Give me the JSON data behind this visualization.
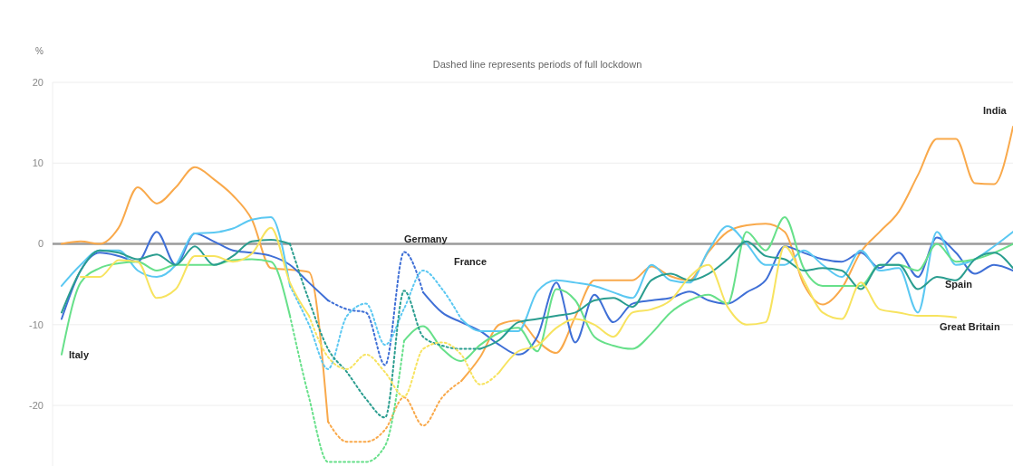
{
  "chart_data": {
    "type": "line",
    "subtitle": "Dashed line represents periods of full lockdown",
    "ylabel": "%",
    "categories": [
      null,
      null,
      null,
      null,
      null,
      null,
      null,
      null,
      null,
      null,
      null,
      null,
      null,
      null,
      null,
      null,
      null,
      null,
      null,
      null,
      null,
      null,
      null,
      null,
      null,
      null,
      null,
      null,
      null,
      null,
      null,
      null,
      null,
      null,
      null,
      null,
      null,
      null,
      null,
      null,
      null,
      null,
      null,
      null,
      null,
      null,
      null,
      null,
      null,
      null,
      null
    ],
    "ylim": [
      -27.5,
      20
    ],
    "yticks": [
      20,
      10,
      0,
      -10,
      -20
    ],
    "grid": "y",
    "legend": false,
    "ref_lines": [
      {
        "axis": "y",
        "value": 0,
        "color": "#9a9a9a"
      }
    ],
    "series": [
      {
        "color": "#f9a94b",
        "line_style": "solid",
        "values": [
          0,
          0.3,
          0,
          2,
          7,
          5,
          7,
          9.5,
          8,
          6,
          3,
          -3,
          -3.2,
          -3.5,
          -22,
          null,
          null,
          null,
          null,
          null,
          null,
          null,
          null,
          null,
          null,
          null,
          null,
          null,
          null,
          null,
          null,
          null,
          null,
          null,
          null,
          null,
          null,
          null,
          null,
          null,
          null,
          null,
          null,
          null,
          null,
          null,
          null,
          null,
          null,
          null,
          null
        ]
      },
      {
        "color": "#f9a94b",
        "line_style": "dotted",
        "values": [
          null,
          null,
          null,
          null,
          null,
          null,
          null,
          null,
          null,
          null,
          null,
          null,
          null,
          null,
          -22,
          -24.5,
          -24.5,
          -23,
          -19,
          -22.5,
          -19,
          -17,
          null,
          null,
          null,
          null,
          null,
          null,
          null,
          null,
          null,
          null,
          null,
          null,
          null,
          null,
          null,
          null,
          null,
          null,
          null,
          null,
          null,
          null,
          null,
          null,
          null,
          null,
          null,
          null,
          null
        ]
      },
      {
        "name": "India",
        "color": "#f9a94b",
        "line_style": "solid",
        "values": [
          null,
          null,
          null,
          null,
          null,
          null,
          null,
          null,
          null,
          null,
          null,
          null,
          null,
          null,
          null,
          null,
          null,
          null,
          null,
          null,
          null,
          -17,
          -14,
          -10,
          -9.5,
          -12,
          -13.5,
          -9,
          -4.5,
          -4.5,
          -4.5,
          -2.8,
          -4,
          -4.5,
          -1,
          1.5,
          2.3,
          2.5,
          1.5,
          -5,
          -7.5,
          -5.5,
          -1,
          1.5,
          4,
          8.5,
          13,
          13,
          7.5,
          7.4,
          14.5
        ]
      },
      {
        "color": "#3f6fd6",
        "line_style": "solid",
        "values": [
          -9.3,
          -3.3,
          -1.1,
          -1.5,
          -2.2,
          1.5,
          -2.6,
          1.3,
          0.3,
          -0.8,
          -1.1,
          -1.5,
          -2.6,
          -4.8,
          -7,
          null,
          null,
          null,
          null,
          null,
          null,
          null,
          null,
          null,
          null,
          null,
          null,
          null,
          null,
          null,
          null,
          null,
          null,
          null,
          null,
          null,
          null,
          null,
          null,
          null,
          null,
          null,
          null,
          null,
          null,
          null,
          null,
          null,
          null,
          null,
          null
        ]
      },
      {
        "name": "Germany",
        "color": "#3f6fd6",
        "line_style": "dotted",
        "values": [
          null,
          null,
          null,
          null,
          null,
          null,
          null,
          null,
          null,
          null,
          null,
          null,
          null,
          null,
          -7,
          -8.1,
          -8.5,
          -15,
          -1,
          -6,
          null,
          null,
          null,
          null,
          null,
          null,
          null,
          null,
          null,
          null,
          null,
          null,
          null,
          null,
          null,
          null,
          null,
          null,
          null,
          null,
          null,
          null,
          null,
          null,
          null,
          null,
          null,
          null,
          null,
          null,
          null
        ]
      },
      {
        "color": "#3f6fd6",
        "line_style": "solid",
        "values": [
          null,
          null,
          null,
          null,
          null,
          null,
          null,
          null,
          null,
          null,
          null,
          null,
          null,
          null,
          null,
          null,
          null,
          null,
          null,
          -6,
          -8.5,
          -9.7,
          -10.8,
          -12.5,
          -13.7,
          -11.5,
          -4.8,
          -12.2,
          -6.3,
          -9.7,
          -7.4,
          -7,
          -6.7,
          -5.9,
          -7,
          -7.4,
          -6,
          -4.5,
          -0.3,
          -1.1,
          -1.9,
          -2.2,
          -1.1,
          -3,
          -1.1,
          -4.1,
          0.8,
          -1.1,
          -3.7,
          -2.6,
          -3.3
        ]
      },
      {
        "color": "#5bc8f2",
        "line_style": "solid",
        "values": [
          -5.2,
          -2.6,
          -0.8,
          -0.8,
          -3.3,
          -4.1,
          -2.6,
          1.3,
          1.4,
          1.9,
          3,
          3.3,
          -5.2,
          null,
          null,
          null,
          null,
          null,
          null,
          null,
          null,
          null,
          null,
          null,
          null,
          null,
          null,
          null,
          null,
          null,
          null,
          null,
          null,
          null,
          null,
          null,
          null,
          null,
          null,
          null,
          null,
          null,
          null,
          null,
          null,
          null,
          null,
          null,
          null,
          null,
          null
        ]
      },
      {
        "name": "France",
        "color": "#5bc8f2",
        "line_style": "dotted",
        "values": [
          null,
          null,
          null,
          null,
          null,
          null,
          null,
          null,
          null,
          null,
          null,
          null,
          -5.2,
          -10,
          -15.5,
          -8.9,
          -7.4,
          -12.5,
          -8,
          -3.3,
          -5.6,
          -9.3,
          null,
          null,
          null,
          null,
          null,
          null,
          null,
          null,
          null,
          null,
          null,
          null,
          null,
          null,
          null,
          null,
          null,
          null,
          null,
          null,
          null,
          null,
          null,
          null,
          null,
          null,
          null,
          null,
          null
        ]
      },
      {
        "color": "#5bc8f2",
        "line_style": "solid",
        "values": [
          null,
          null,
          null,
          null,
          null,
          null,
          null,
          null,
          null,
          null,
          null,
          null,
          null,
          null,
          null,
          null,
          null,
          null,
          null,
          null,
          null,
          -9.3,
          -10.8,
          -10.8,
          -10.8,
          -5.9,
          -4.5,
          -4.8,
          -5.2,
          -6,
          -6.7,
          -2.6,
          -4.5,
          -4.8,
          -0.8,
          2.2,
          0,
          -2.6,
          -2.6,
          -0.8,
          -2.6,
          -4.1,
          -0.8,
          -3.3,
          -3,
          -8.5,
          1.5,
          -2.6,
          -1.9,
          -0.3,
          1.5
        ]
      },
      {
        "name": "Italy",
        "color": "#67e08a",
        "line_style": "solid",
        "values": [
          -13.7,
          -4.8,
          -3,
          -2.4,
          -2.2,
          -3.3,
          -2.6,
          -2.6,
          -2.6,
          -2,
          -1.9,
          -2.2,
          -8.9,
          null,
          null,
          null,
          null,
          null,
          null,
          null,
          null,
          null,
          null,
          null,
          null,
          null,
          null,
          null,
          null,
          null,
          null,
          null,
          null,
          null,
          null,
          null,
          null,
          null,
          null,
          null,
          null,
          null,
          null,
          null,
          null,
          null,
          null,
          null,
          null,
          null,
          null
        ]
      },
      {
        "color": "#67e08a",
        "line_style": "dotted",
        "values": [
          null,
          null,
          null,
          null,
          null,
          null,
          null,
          null,
          null,
          null,
          null,
          null,
          -8.9,
          -19,
          -27,
          -27,
          -27,
          -25,
          -12,
          null,
          null,
          null,
          null,
          null,
          null,
          null,
          null,
          null,
          null,
          null,
          null,
          null,
          null,
          null,
          null,
          null,
          null,
          null,
          null,
          null,
          null,
          null,
          null,
          null,
          null,
          null,
          null,
          null,
          null,
          null,
          null
        ]
      },
      {
        "color": "#67e08a",
        "line_style": "solid",
        "values": [
          null,
          null,
          null,
          null,
          null,
          null,
          null,
          null,
          null,
          null,
          null,
          null,
          null,
          null,
          null,
          null,
          null,
          null,
          -12,
          -10.2,
          -13,
          -14.5,
          -12.5,
          -11,
          -10.4,
          -13.3,
          -5.6,
          -7,
          -11.5,
          -12.6,
          -13,
          -11.1,
          -8.5,
          -7,
          -6.3,
          -7.4,
          1.5,
          -0.8,
          3.3,
          -3,
          -5.2,
          -5.2,
          -5.2,
          -2.6,
          -2.6,
          -3.3,
          0,
          -2.2,
          -1.9,
          -1.1,
          0
        ]
      },
      {
        "color": "#2a9d8f",
        "line_style": "solid",
        "values": [
          -8.5,
          -3.3,
          -0.8,
          -1.1,
          -1.9,
          -1.3,
          -2.6,
          -0.3,
          -2.6,
          -1.5,
          0.3,
          0.5,
          0,
          null,
          null,
          null,
          null,
          null,
          null,
          null,
          null,
          null,
          null,
          null,
          null,
          null,
          null,
          null,
          null,
          null,
          null,
          null,
          null,
          null,
          null,
          null,
          null,
          null,
          null,
          null,
          null,
          null,
          null,
          null,
          null,
          null,
          null,
          null,
          null,
          null,
          null
        ]
      },
      {
        "color": "#2a9d8f",
        "line_style": "dotted",
        "values": [
          null,
          null,
          null,
          null,
          null,
          null,
          null,
          null,
          null,
          null,
          null,
          null,
          0,
          -7,
          -13,
          -15.9,
          -19.2,
          -21.5,
          -5.8,
          -11.5,
          -12.6,
          -13,
          -13,
          null,
          null,
          null,
          null,
          null,
          null,
          null,
          null,
          null,
          null,
          null,
          null,
          null,
          null,
          null,
          null,
          null,
          null,
          null,
          null,
          null,
          null,
          null,
          null,
          null,
          null,
          null,
          null
        ]
      },
      {
        "name": "Spain",
        "color": "#2a9d8f",
        "line_style": "solid",
        "values": [
          null,
          null,
          null,
          null,
          null,
          null,
          null,
          null,
          null,
          null,
          null,
          null,
          null,
          null,
          null,
          null,
          null,
          null,
          null,
          null,
          null,
          null,
          -13,
          -11.9,
          -9.7,
          -9.3,
          -8.9,
          -8.5,
          -7,
          -6.7,
          -7.8,
          -4.5,
          -3.7,
          -4.5,
          -3.7,
          -1.9,
          0.3,
          -1.5,
          -1.9,
          -3.3,
          -3,
          -3.3,
          -5.6,
          -2.6,
          -2.6,
          -5.6,
          -4.1,
          -4.5,
          -1.9,
          -1.1,
          -3
        ]
      },
      {
        "color": "#f7e35f",
        "line_style": "solid",
        "values": [
          null,
          -4.1,
          -4.1,
          -2,
          -2.2,
          -6.7,
          -5.6,
          -1.5,
          -1.5,
          -2.2,
          -1.2,
          2,
          -4.8,
          -8.9,
          null,
          null,
          null,
          null,
          null,
          null,
          null,
          null,
          null,
          null,
          null,
          null,
          null,
          null,
          null,
          null,
          null,
          null,
          null,
          null,
          null,
          null,
          null,
          null,
          null,
          null,
          null,
          null,
          null,
          null,
          null,
          null,
          null,
          null,
          null,
          null,
          null
        ]
      },
      {
        "color": "#f7e35f",
        "line_style": "dotted",
        "values": [
          null,
          null,
          null,
          null,
          null,
          null,
          null,
          null,
          null,
          null,
          null,
          null,
          null,
          -8.9,
          -14,
          -15.5,
          -13.7,
          -15.9,
          -18.9,
          -13,
          -12.2,
          -13.7,
          -17.4,
          -15.9,
          null,
          null,
          null,
          null,
          null,
          null,
          null,
          null,
          null,
          null,
          null,
          null,
          null,
          null,
          null,
          null,
          null,
          null,
          null,
          null,
          null,
          null,
          null,
          null,
          null,
          null,
          null
        ]
      },
      {
        "name": "Great Britain",
        "color": "#f7e35f",
        "line_style": "solid",
        "values": [
          null,
          null,
          null,
          null,
          null,
          null,
          null,
          null,
          null,
          null,
          null,
          null,
          null,
          null,
          null,
          null,
          null,
          null,
          null,
          null,
          null,
          null,
          null,
          -15.9,
          -13.3,
          -12.6,
          -10.4,
          -9.3,
          -10,
          -11.5,
          -8.5,
          -8.1,
          -7,
          -4.1,
          -2.6,
          -7.8,
          -10,
          -9.7,
          -0.3,
          -4.5,
          -8.5,
          -9.3,
          -4.8,
          -8.1,
          -8.5,
          -8.9,
          -8.9,
          -9.1,
          null,
          null,
          null
        ]
      }
    ]
  }
}
